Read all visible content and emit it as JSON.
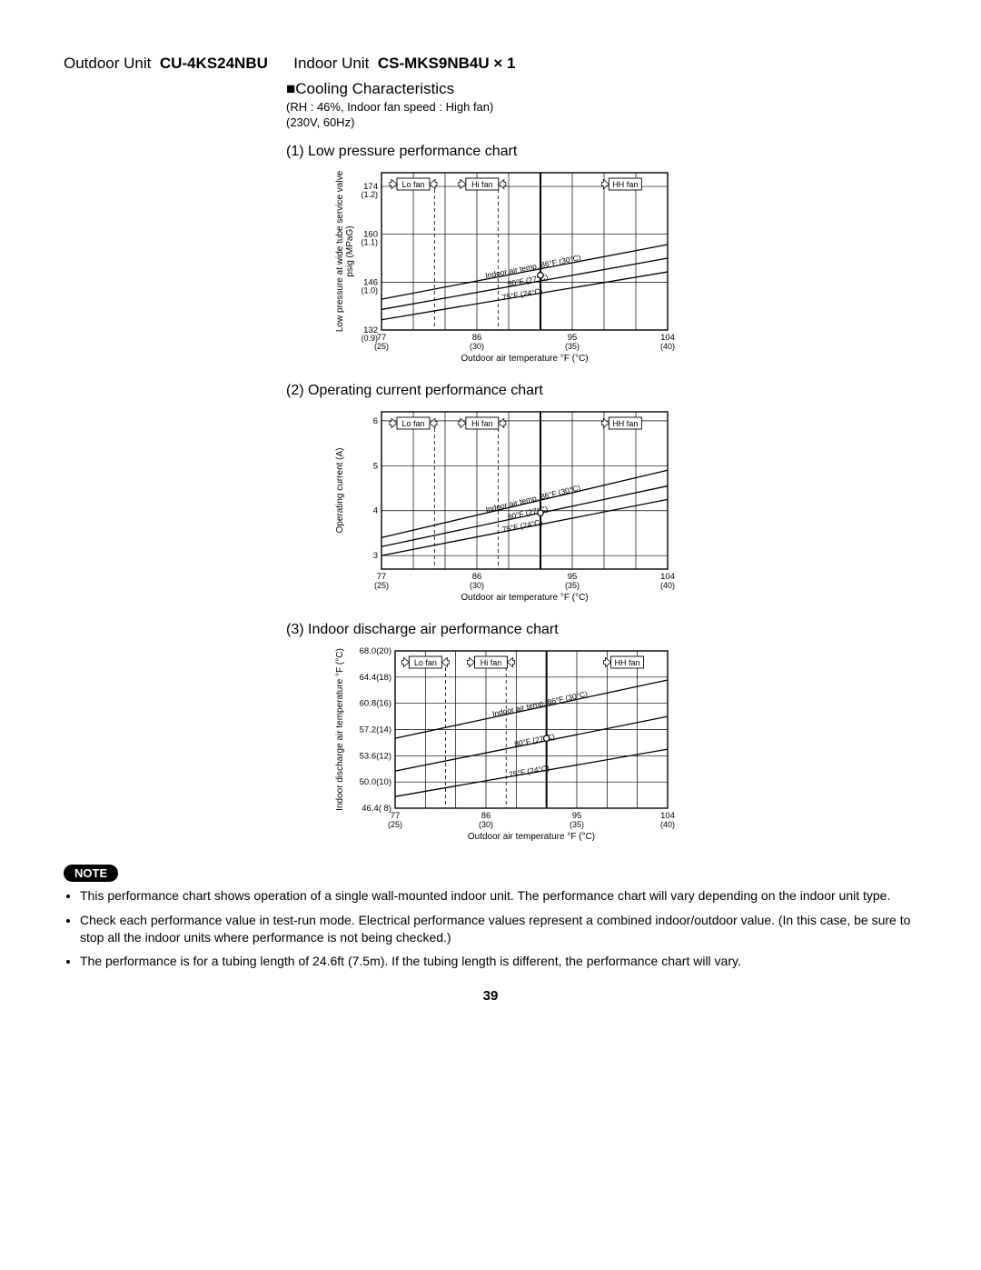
{
  "header": {
    "outdoor_label": "Outdoor Unit",
    "outdoor_model": "CU-4KS24NBU",
    "indoor_label": "Indoor Unit",
    "indoor_model": "CS-MKS9NB4U × 1"
  },
  "section": {
    "title": "Cooling Characteristics",
    "sub1": "(RH : 46%, Indoor fan speed : High fan)",
    "sub2": "(230V, 60Hz)"
  },
  "xaxis": {
    "label": "Outdoor air temperature °F (°C)",
    "ticks": [
      {
        "f": "77",
        "c": "(25)"
      },
      {
        "f": "86",
        "c": "(30)"
      },
      {
        "f": "95",
        "c": "(35)"
      },
      {
        "f": "104",
        "c": "(40)"
      }
    ]
  },
  "fan_boxes": [
    "Lo fan",
    "Hi fan",
    "HH fan"
  ],
  "temp_lines": [
    "Indoor air temp. 86°F (30°C)",
    "80°F (27°C)",
    "75°F (24°C)"
  ],
  "chart1": {
    "title": "(1) Low pressure performance chart",
    "ylabel": "Low pressure at wide tube service valve\npsig (MPaG)",
    "yticks": [
      {
        "p": "174",
        "s": "(1.2)",
        "v": 174
      },
      {
        "p": "160",
        "s": "(1.1)",
        "v": 160
      },
      {
        "p": "146",
        "s": "(1.0)",
        "v": 146
      },
      {
        "p": "132",
        "s": "(0.9)",
        "v": 132
      }
    ],
    "ylim": [
      132,
      178
    ],
    "series": [
      {
        "pts": [
          [
            77,
            141
          ],
          [
            104,
            157
          ]
        ]
      },
      {
        "pts": [
          [
            77,
            138
          ],
          [
            104,
            153
          ]
        ]
      },
      {
        "pts": [
          [
            77,
            135
          ],
          [
            104,
            149
          ]
        ]
      }
    ],
    "op": [
      92,
      148
    ]
  },
  "chart2": {
    "title": "(2) Operating current performance chart",
    "ylabel": "Operating current (A)",
    "yticks": [
      {
        "p": "6",
        "v": 6
      },
      {
        "p": "5",
        "v": 5
      },
      {
        "p": "4",
        "v": 4
      },
      {
        "p": "3",
        "v": 3
      }
    ],
    "ylim": [
      2.7,
      6.2
    ],
    "series": [
      {
        "pts": [
          [
            77,
            3.4
          ],
          [
            104,
            4.9
          ]
        ]
      },
      {
        "pts": [
          [
            77,
            3.2
          ],
          [
            104,
            4.55
          ]
        ]
      },
      {
        "pts": [
          [
            77,
            3.0
          ],
          [
            104,
            4.25
          ]
        ]
      }
    ],
    "op": [
      92,
      3.95
    ]
  },
  "chart3": {
    "title": "(3) Indoor discharge air performance chart",
    "ylabel": "Indoor discharge air temperature °F (°C)",
    "yticks": [
      {
        "p": "68.0(20)",
        "v": 68
      },
      {
        "p": "64.4(18)",
        "v": 64.4
      },
      {
        "p": "60.8(16)",
        "v": 60.8
      },
      {
        "p": "57.2(14)",
        "v": 57.2
      },
      {
        "p": "53.6(12)",
        "v": 53.6
      },
      {
        "p": "50.0(10)",
        "v": 50
      },
      {
        "p": "46.4( 8)",
        "v": 46.4
      }
    ],
    "ylim": [
      46.4,
      68
    ],
    "series": [
      {
        "pts": [
          [
            77,
            56
          ],
          [
            104,
            64
          ]
        ]
      },
      {
        "pts": [
          [
            77,
            51.5
          ],
          [
            104,
            59
          ]
        ]
      },
      {
        "pts": [
          [
            77,
            48
          ],
          [
            104,
            54.5
          ]
        ]
      }
    ],
    "op": [
      92,
      56
    ]
  },
  "styling": {
    "grid_color": "#000",
    "bg": "#fff",
    "line_color": "#000",
    "line_width": 1.2,
    "font": "Arial"
  },
  "notes": {
    "badge": "NOTE",
    "items": [
      "This performance chart shows operation of a single wall-mounted indoor unit. The performance chart will vary depending on the indoor unit type.",
      "Check each performance value in test-run mode. Electrical performance values represent a combined indoor/outdoor value. (In this case, be sure to stop all the indoor units where performance is not being checked.)",
      "The performance is for a tubing length of 24.6ft (7.5m). If the tubing length is different, the performance chart will vary."
    ]
  },
  "page": "39"
}
